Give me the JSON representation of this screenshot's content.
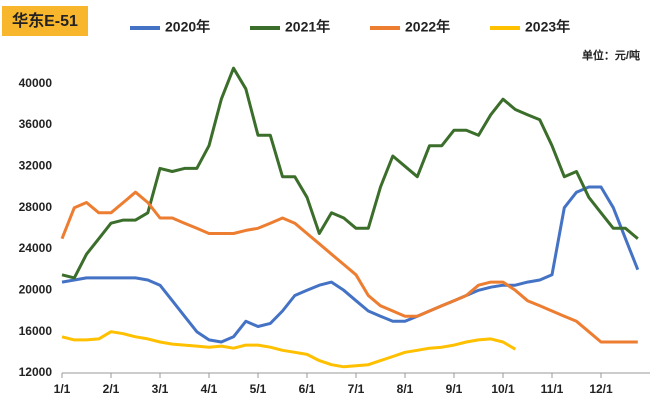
{
  "chart_data": {
    "type": "line",
    "title": "华东E-51",
    "unit_label": "单位：元/吨",
    "categories": [
      "1/1",
      null,
      null,
      null,
      "2/1",
      null,
      null,
      null,
      "3/1",
      null,
      null,
      null,
      "4/1",
      null,
      null,
      null,
      "5/1",
      null,
      null,
      null,
      "6/1",
      null,
      null,
      null,
      "7/1",
      null,
      null,
      null,
      "8/1",
      null,
      null,
      null,
      "9/1",
      null,
      null,
      null,
      "10/1",
      null,
      null,
      null,
      "11/1",
      null,
      null,
      null,
      "12/1",
      null,
      null,
      null
    ],
    "series": [
      {
        "name": "2020年",
        "color": "#4472c4",
        "values": [
          20800,
          21000,
          21200,
          21200,
          21200,
          21200,
          21200,
          21000,
          20500,
          19000,
          17500,
          16000,
          15200,
          15000,
          15500,
          17000,
          16500,
          16800,
          18000,
          19500,
          20000,
          20500,
          20800,
          20000,
          19000,
          18000,
          17500,
          17000,
          17000,
          17500,
          18000,
          18500,
          19000,
          19500,
          20000,
          20300,
          20500,
          20500,
          20800,
          21000,
          21500,
          28000,
          29500,
          30000,
          30000,
          28000,
          25000,
          22000
        ]
      },
      {
        "name": "2021年",
        "color": "#3b6e2a",
        "values": [
          21500,
          21200,
          23500,
          25000,
          26500,
          26800,
          26800,
          27500,
          31800,
          31500,
          31800,
          31800,
          34000,
          38500,
          41500,
          39500,
          35000,
          35000,
          31000,
          31000,
          29000,
          25500,
          27500,
          27000,
          26000,
          26000,
          30000,
          33000,
          32000,
          31000,
          34000,
          34000,
          35500,
          35500,
          35000,
          37000,
          38500,
          37500,
          37000,
          36500,
          34000,
          31000,
          31500,
          29000,
          27500,
          26000,
          26000,
          25000
        ]
      },
      {
        "name": "2022年",
        "color": "#ed7d31",
        "values": [
          25000,
          28000,
          28500,
          27500,
          27500,
          28500,
          29500,
          28500,
          27000,
          27000,
          26500,
          26000,
          25500,
          25500,
          25500,
          25800,
          26000,
          26500,
          27000,
          26500,
          25500,
          24500,
          23500,
          22500,
          21500,
          19500,
          18500,
          18000,
          17500,
          17500,
          18000,
          18500,
          19000,
          19500,
          20500,
          20800,
          20800,
          20000,
          19000,
          18500,
          18000,
          17500,
          17000,
          16000,
          15000,
          15000,
          15000,
          15000
        ]
      },
      {
        "name": "2023年",
        "color": "#ffc000",
        "values": [
          15500,
          15200,
          15200,
          15300,
          16000,
          15800,
          15500,
          15300,
          15000,
          14800,
          14700,
          14600,
          14500,
          14600,
          14400,
          14700,
          14700,
          14500,
          14200,
          14000,
          13800,
          13200,
          12800,
          12600,
          12700,
          12800,
          13200,
          13600,
          14000,
          14200,
          14400,
          14500,
          14700,
          15000,
          15200,
          15300,
          15000,
          14300,
          null,
          null,
          null,
          null,
          null,
          null,
          null,
          null,
          null,
          null
        ]
      }
    ],
    "ylim": [
      12000,
      42000
    ],
    "yticks": [
      12000,
      16000,
      20000,
      24000,
      28000,
      32000,
      36000,
      40000
    ],
    "grid": false
  }
}
